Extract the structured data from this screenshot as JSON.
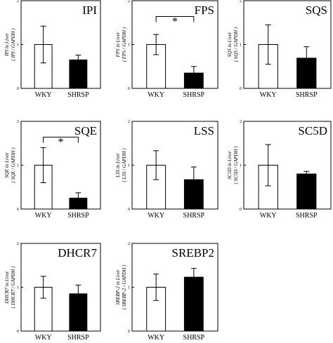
{
  "chart_data": [
    {
      "type": "bar",
      "title": "IPI",
      "ylabel_line1": "IPI in Liver",
      "ylabel_line2": "( IPI / GAPDH )",
      "categories": [
        "WKY",
        "SHRSP"
      ],
      "values": [
        1.0,
        0.65
      ],
      "errors": [
        0.42,
        0.11
      ],
      "ylim": [
        0,
        2
      ],
      "yticks": [
        "0",
        "1",
        "2"
      ],
      "significance": "",
      "bar_colors": [
        "#ffffff",
        "#000000"
      ]
    },
    {
      "type": "bar",
      "title": "FPS",
      "ylabel_line1": "FPS in Liver",
      "ylabel_line2": "( FPS / GAPDH )",
      "categories": [
        "WKY",
        "SHRSP"
      ],
      "values": [
        1.0,
        0.35
      ],
      "errors": [
        0.23,
        0.15
      ],
      "ylim": [
        0,
        2
      ],
      "yticks": [
        "0",
        "1",
        "2"
      ],
      "significance": "*",
      "bar_colors": [
        "#ffffff",
        "#000000"
      ]
    },
    {
      "type": "bar",
      "title": "SQS",
      "ylabel_line1": "SQS in Liver",
      "ylabel_line2": "( SQS / GAPDH )",
      "categories": [
        "WKY",
        "SHRSP"
      ],
      "values": [
        1.0,
        0.69
      ],
      "errors": [
        0.45,
        0.26
      ],
      "ylim": [
        0,
        2
      ],
      "yticks": [
        "0",
        "1",
        "2"
      ],
      "significance": "",
      "bar_colors": [
        "#ffffff",
        "#000000"
      ]
    },
    {
      "type": "bar",
      "title": "SQE",
      "ylabel_line1": "SQE in Liver",
      "ylabel_line2": "( SQE / GAPDH )",
      "categories": [
        "WKY",
        "SHRSP"
      ],
      "values": [
        1.0,
        0.25
      ],
      "errors": [
        0.4,
        0.12
      ],
      "ylim": [
        0,
        2
      ],
      "yticks": [
        "0",
        "1",
        "2"
      ],
      "significance": "*",
      "bar_colors": [
        "#ffffff",
        "#000000"
      ]
    },
    {
      "type": "bar",
      "title": "LSS",
      "ylabel_line1": "LSS in Liver",
      "ylabel_line2": "( LSS / GAPDH )",
      "categories": [
        "WKY",
        "SHRSP"
      ],
      "values": [
        1.0,
        0.67
      ],
      "errors": [
        0.33,
        0.29
      ],
      "ylim": [
        0,
        2
      ],
      "yticks": [
        "0",
        "1",
        "2"
      ],
      "significance": "",
      "bar_colors": [
        "#ffffff",
        "#000000"
      ]
    },
    {
      "type": "bar",
      "title": "SC5D",
      "ylabel_line1": "SC5D in Liver",
      "ylabel_line2": "( SC5D / GAPDH )",
      "categories": [
        "WKY",
        "SHRSP"
      ],
      "values": [
        1.0,
        0.8
      ],
      "errors": [
        0.47,
        0.06
      ],
      "ylim": [
        0,
        2
      ],
      "yticks": [
        "0",
        "1",
        "2"
      ],
      "significance": "",
      "bar_colors": [
        "#ffffff",
        "#000000"
      ]
    },
    {
      "type": "bar",
      "title": "DHCR7",
      "ylabel_line1": "DHCR7 in Liver",
      "ylabel_line2": "( DHCR7 / GAPDH )",
      "categories": [
        "WKY",
        "SHRSP"
      ],
      "values": [
        1.0,
        0.85
      ],
      "errors": [
        0.25,
        0.2
      ],
      "ylim": [
        0,
        2
      ],
      "yticks": [
        "0",
        "1",
        "2"
      ],
      "significance": "",
      "bar_colors": [
        "#ffffff",
        "#000000"
      ]
    },
    {
      "type": "bar",
      "title": "SREBP2",
      "ylabel_line1": "SREBP-2 in Liver",
      "ylabel_line2": "( SREBP-2 / GAPDH )",
      "categories": [
        "WKY",
        "SHRSP"
      ],
      "values": [
        1.0,
        1.23
      ],
      "errors": [
        0.3,
        0.2
      ],
      "ylim": [
        0,
        2
      ],
      "yticks": [
        "0",
        "1",
        "2"
      ],
      "significance": "",
      "bar_colors": [
        "#ffffff",
        "#000000"
      ]
    }
  ]
}
